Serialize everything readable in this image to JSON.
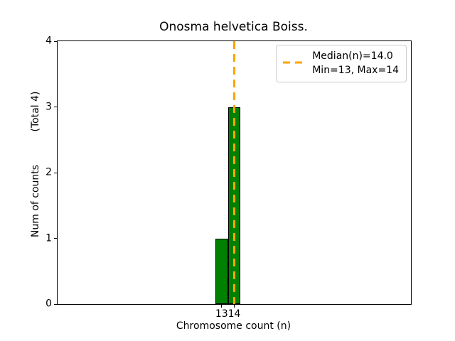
{
  "figure": {
    "title": "Onosma helvetica Boiss.",
    "xlabel": "Chromosome count (n)",
    "ylabel": "Num of counts",
    "ylabel_secondary": "(Total 4)"
  },
  "legend": {
    "line1": "Median(n)=14.0",
    "line2": "Min=13, Max=14"
  },
  "chart_data": {
    "type": "bar",
    "title": "Onosma helvetica Boiss.",
    "xlabel": "Chromosome count (n)",
    "ylabel": "Num of counts (Total 4)",
    "x": [
      13,
      14
    ],
    "counts": [
      1,
      3
    ],
    "total": 4,
    "median": 14.0,
    "min": 13,
    "max": 14,
    "bar_width": 1,
    "bar_color": "#008000",
    "bar_edge_color": "#000000",
    "median_line_color": "#FFA500",
    "xlim": [
      0,
      28
    ],
    "ylim": [
      0,
      4
    ],
    "xticks": [
      13,
      14
    ],
    "yticks": [
      0,
      1,
      2,
      3,
      4
    ],
    "grid": false,
    "legend_position": "upper right",
    "legend_entries": [
      "Median(n)=14.0",
      "Min=13, Max=14"
    ]
  }
}
